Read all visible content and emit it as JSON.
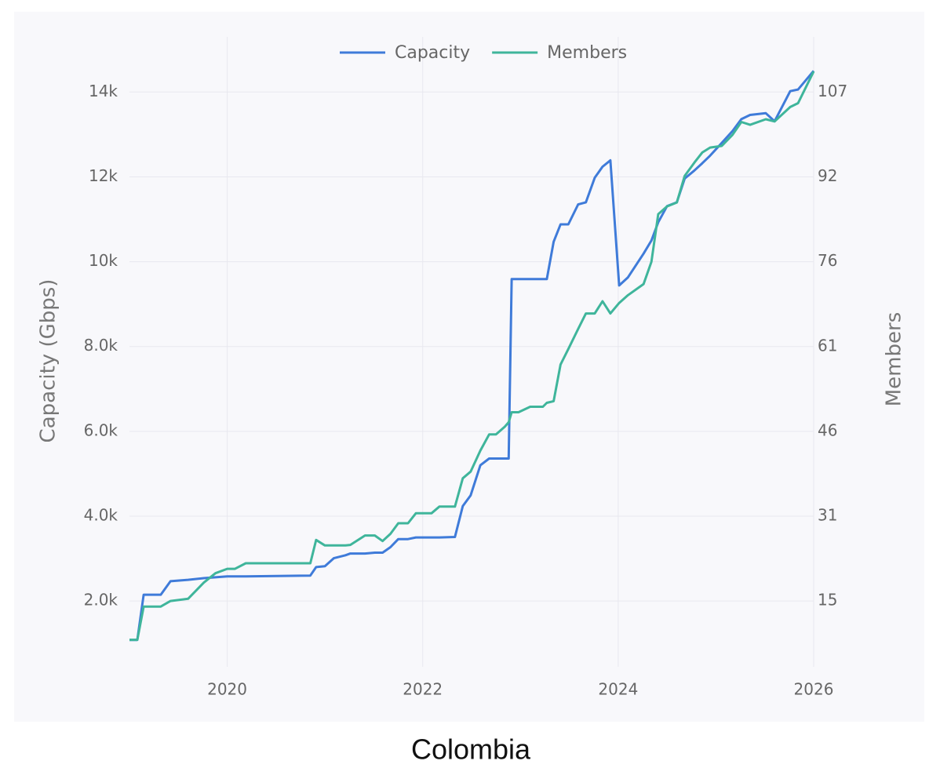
{
  "chart_data": {
    "type": "line",
    "title": "Colombia",
    "y_label": "Capacity (Gbps)",
    "y2_label": "Members",
    "x": [
      2019.0,
      2019.08,
      2019.145,
      2019.32,
      2019.42,
      2019.6,
      2019.76,
      2019.88,
      2020.0,
      2020.08,
      2020.19,
      2020.85,
      2020.91,
      2021.0,
      2021.09,
      2021.21,
      2021.26,
      2021.41,
      2021.51,
      2021.59,
      2021.67,
      2021.75,
      2021.85,
      2021.93,
      2022.09,
      2022.17,
      2022.33,
      2022.41,
      2022.49,
      2022.59,
      2022.68,
      2022.75,
      2022.84,
      2022.88,
      2022.91,
      2022.98,
      2023.1,
      2023.23,
      2023.27,
      2023.34,
      2023.41,
      2023.49,
      2023.59,
      2023.67,
      2023.76,
      2023.84,
      2023.92,
      2024.01,
      2024.1,
      2024.26,
      2024.34,
      2024.41,
      2024.5,
      2024.6,
      2024.68,
      2024.78,
      2024.86,
      2024.94,
      2025.06,
      2025.17,
      2025.26,
      2025.35,
      2025.51,
      2025.6,
      2025.76,
      2025.84,
      2026.0
    ],
    "series": [
      {
        "name": "Capacity",
        "color": "#3f7bd9",
        "values": [
          1084,
          1084,
          2150,
          2150,
          2467,
          2500,
          2540,
          2560,
          2580,
          2580,
          2580,
          2600,
          2800,
          2820,
          3010,
          3080,
          3120,
          3120,
          3140,
          3140,
          3270,
          3460,
          3460,
          3500,
          3500,
          3500,
          3510,
          4240,
          4490,
          5200,
          5360,
          5360,
          5360,
          5360,
          9590,
          9590,
          9590,
          9590,
          9590,
          10470,
          10880,
          10880,
          11350,
          11400,
          11980,
          12240,
          12390,
          9440,
          9630,
          10190,
          10500,
          10930,
          11310,
          11400,
          11960,
          12150,
          12320,
          12500,
          12800,
          13080,
          13360,
          13460,
          13500,
          13310,
          14020,
          14060,
          14500
        ]
      },
      {
        "name": "Members",
        "color": "#3fb59b",
        "axis": "y2",
        "values": [
          8.3,
          8.3,
          14.3,
          14.3,
          15.3,
          15.7,
          18.6,
          20.3,
          21.1,
          21.1,
          22.1,
          22.1,
          26.3,
          25.3,
          25.3,
          25.3,
          25.4,
          27.1,
          27.1,
          26.1,
          27.4,
          29.3,
          29.3,
          31.1,
          31.1,
          32.3,
          32.3,
          37.4,
          38.6,
          42.4,
          45.3,
          45.3,
          46.7,
          47.5,
          49.3,
          49.3,
          50.3,
          50.3,
          51.0,
          51.3,
          57.9,
          60.7,
          64.3,
          67.1,
          67.1,
          69.3,
          67.1,
          69.0,
          70.4,
          72.4,
          76.4,
          85.0,
          86.4,
          87.1,
          91.9,
          94.3,
          96.1,
          97.0,
          97.3,
          99.3,
          101.6,
          101.1,
          102.1,
          101.7,
          104.3,
          105.0,
          110.7
        ]
      }
    ],
    "xlim": [
      2019,
      2026
    ],
    "xticks": [
      2020,
      2022,
      2024,
      2026
    ],
    "ylim": [
      450,
      15300
    ],
    "yticks": [
      {
        "value": 2000,
        "label": "2.0k"
      },
      {
        "value": 4000,
        "label": "4.0k"
      },
      {
        "value": 6000,
        "label": "6.0k"
      },
      {
        "value": 8000,
        "label": "8.0k"
      },
      {
        "value": 10000,
        "label": "10k"
      },
      {
        "value": 12000,
        "label": "12k"
      },
      {
        "value": 14000,
        "label": "14k"
      }
    ],
    "y2lim": [
      3.44,
      116.94
    ],
    "y2ticks": [
      {
        "value": 15.29,
        "label": "15"
      },
      {
        "value": 30.57,
        "label": "31"
      },
      {
        "value": 45.86,
        "label": "46"
      },
      {
        "value": 61.14,
        "label": "61"
      },
      {
        "value": 76.43,
        "label": "76"
      },
      {
        "value": 91.71,
        "label": "92"
      },
      107
    ],
    "grid": true,
    "legend": "top"
  }
}
